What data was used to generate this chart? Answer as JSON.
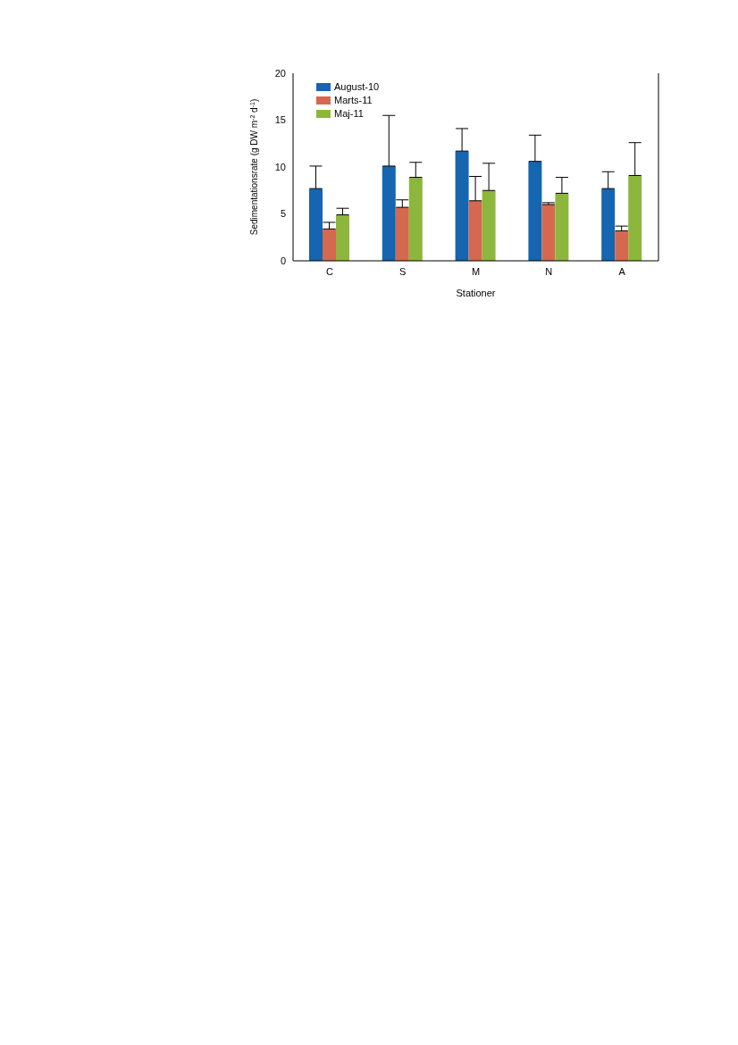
{
  "chart_data": {
    "type": "bar",
    "xlabel": "Stationer",
    "ylabel": "Sedimentationsrate (g DW m$^{-2}$ d$^{-1}$)",
    "categories": [
      "C",
      "S",
      "M",
      "N",
      "A"
    ],
    "series": [
      {
        "name": "August-10",
        "color": "#1565b0",
        "values": [
          7.7,
          10.1,
          11.7,
          10.6,
          7.7
        ],
        "errors": [
          [
            7.7,
            10.1
          ],
          [
            10.1,
            15.5
          ],
          [
            11.7,
            14.1
          ],
          [
            10.6,
            13.4
          ],
          [
            7.7,
            9.5
          ]
        ]
      },
      {
        "name": "Marts-11",
        "color": "#d4694f",
        "values": [
          3.4,
          5.7,
          6.4,
          6.0,
          3.2
        ],
        "errors": [
          [
            3.4,
            4.1
          ],
          [
            5.7,
            6.5
          ],
          [
            6.4,
            9.0
          ],
          [
            6.0,
            6.2
          ],
          [
            3.2,
            3.7
          ]
        ]
      },
      {
        "name": "Maj-11",
        "color": "#8db63c",
        "values": [
          4.9,
          8.9,
          7.5,
          7.2,
          9.1
        ],
        "errors": [
          [
            4.9,
            5.6
          ],
          [
            8.9,
            10.5
          ],
          [
            7.5,
            10.4
          ],
          [
            7.2,
            8.9
          ],
          [
            9.1,
            12.6
          ]
        ]
      }
    ],
    "ylim": [
      0,
      20
    ],
    "yticks": [
      0,
      5,
      10,
      15,
      20
    ],
    "grid": false,
    "legend": "top left"
  }
}
